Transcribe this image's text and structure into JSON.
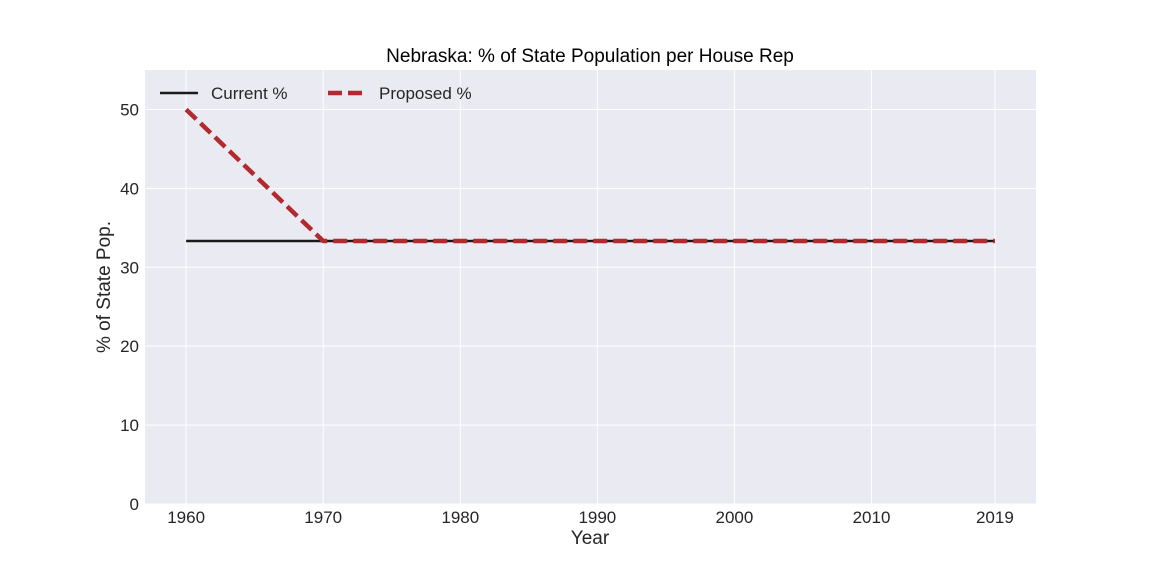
{
  "chart_data": {
    "type": "line",
    "title": "Nebraska: % of State Population per House Rep",
    "xlabel": "Year",
    "ylabel": "% of State Pop.",
    "x": [
      1960,
      1970,
      1980,
      1990,
      2000,
      2010,
      2019
    ],
    "x_tick_labels": [
      "1960",
      "1970",
      "1980",
      "1990",
      "2000",
      "2010",
      "2019"
    ],
    "y_ticks": [
      "0",
      "10",
      "20",
      "30",
      "40",
      "50"
    ],
    "xlim": [
      1957,
      2022
    ],
    "ylim": [
      0,
      55
    ],
    "grid": true,
    "legend_position": "top-left",
    "series": [
      {
        "name": "Current %",
        "values": [
          33.33,
          33.33,
          33.33,
          33.33,
          33.33,
          33.33,
          33.33
        ],
        "color": "#1a1a1a",
        "style": "solid"
      },
      {
        "name": "Proposed %",
        "values": [
          50,
          33.33,
          33.33,
          33.33,
          33.33,
          33.33,
          33.33
        ],
        "color": "#b22a2e",
        "style": "dashed"
      }
    ]
  }
}
